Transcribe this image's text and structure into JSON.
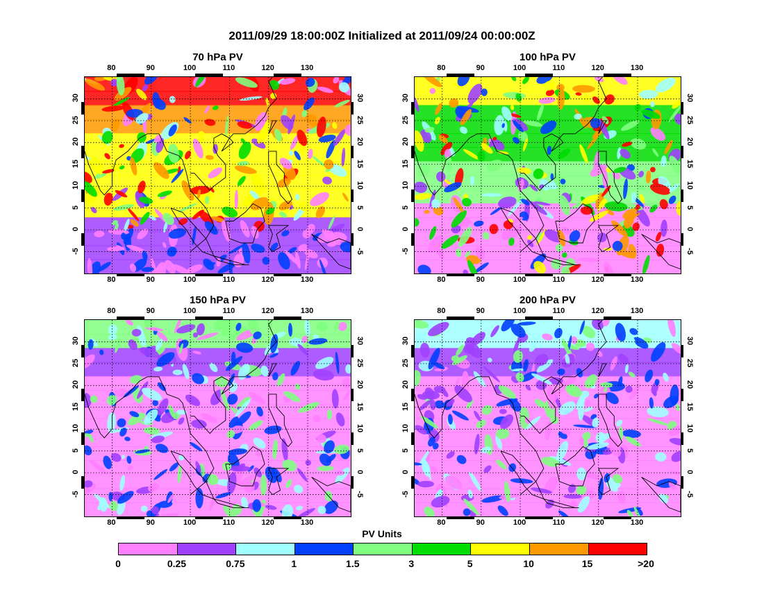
{
  "title": "2011/09/29 18:00:00Z Initialized at 2011/09/24 00:00:00Z",
  "map_extent": {
    "lon_min": 73,
    "lon_max": 141,
    "lat_min": -10,
    "lat_max": 35
  },
  "lon_ticks": [
    "80",
    "90",
    "100",
    "110",
    "120",
    "130"
  ],
  "lat_ticks": [
    "30",
    "25",
    "20",
    "15",
    "10",
    "5",
    "0",
    "-5"
  ],
  "panels": [
    {
      "title": "70 hPa PV",
      "field": "pv70",
      "base_level": 7,
      "noise_level": 8
    },
    {
      "title": "100 hPa PV",
      "field": "pv100",
      "base_level": 6,
      "noise_level": 5
    },
    {
      "title": "150 hPa PV",
      "field": "pv150",
      "base_level": 4,
      "noise_level": 1
    },
    {
      "title": "200 hPa PV",
      "field": "pv200",
      "base_level": 2,
      "noise_level": 1
    }
  ],
  "colorbar": {
    "title": "PV Units",
    "colors": [
      "#ff80ff",
      "#a040ff",
      "#a0ffff",
      "#0040ff",
      "#80ff80",
      "#00dd00",
      "#ffff00",
      "#ff9900",
      "#ff0000"
    ],
    "labels": [
      "0",
      "0.25",
      "0.75",
      "1",
      "1.5",
      "3",
      "5",
      "10",
      "15",
      ">20"
    ]
  }
}
